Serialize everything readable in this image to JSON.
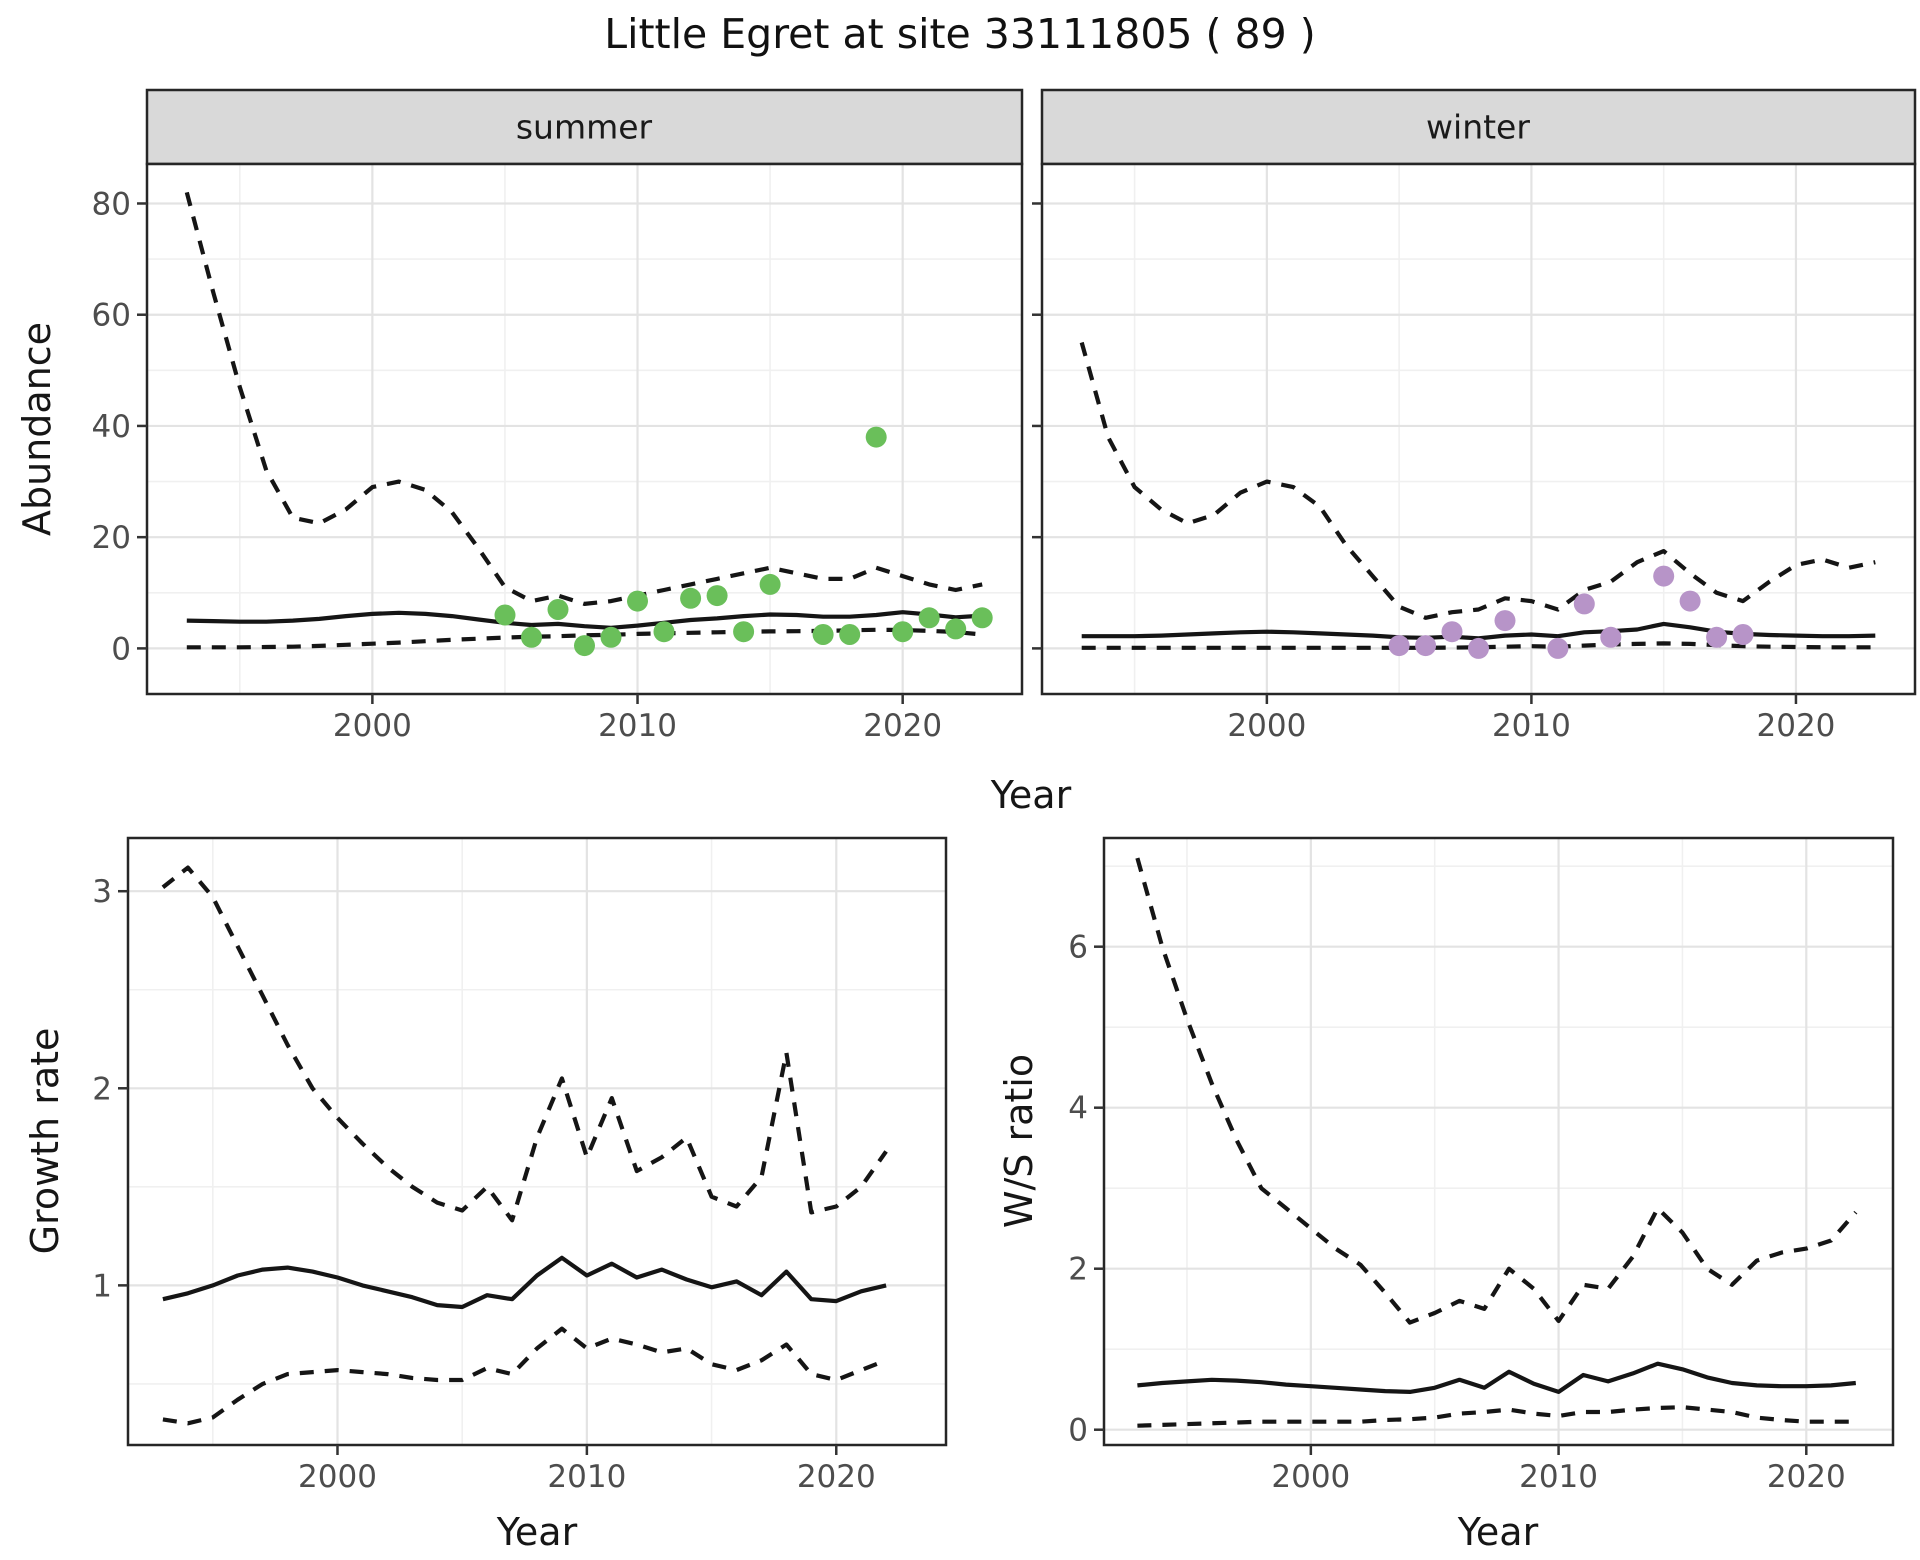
{
  "title": "Little Egret at site 33111805 ( 89 )",
  "facets": [
    {
      "label": "summer"
    },
    {
      "label": "winter"
    }
  ],
  "axes": {
    "abundance": "Abundance",
    "year": "Year",
    "growth": "Growth rate",
    "ws": "W/S ratio"
  },
  "colors": {
    "point_summer": "#6abf5a",
    "point_winter": "#b794c8",
    "line": "#151515",
    "grid_major": "#e3e3e3",
    "grid_minor": "#f0f0f0",
    "strip_bg": "#d9d9d9",
    "strip_border": "#262626",
    "panel_border": "#262626",
    "tick_mark": "#333333",
    "tick_label": "#4d4d4d"
  },
  "chart_data": [
    {
      "id": "abundance-summer",
      "type": "line",
      "facet": "summer",
      "ylabel": "Abundance",
      "xlabel": "Year",
      "x_ticks": [
        2000,
        2010,
        2020
      ],
      "x_minor": [
        1995,
        2005,
        2015
      ],
      "y_ticks": [
        0,
        20,
        40,
        60,
        80
      ],
      "y_minor": [
        10,
        30,
        50,
        70
      ],
      "xlim": [
        1991.5,
        2024.5
      ],
      "ylim": [
        -8.2,
        87.1
      ],
      "show_y_labels": true,
      "years": [
        1993,
        1994,
        1995,
        1996,
        1997,
        1998,
        1999,
        2000,
        2001,
        2002,
        2003,
        2004,
        2005,
        2006,
        2007,
        2008,
        2009,
        2010,
        2011,
        2012,
        2013,
        2014,
        2015,
        2016,
        2017,
        2018,
        2019,
        2020,
        2021,
        2022,
        2023
      ],
      "series": [
        {
          "name": "upper95",
          "style": "dashed",
          "values": [
            82,
            64,
            47,
            32,
            23.5,
            22.5,
            25,
            29,
            30,
            28.5,
            24.5,
            18,
            11,
            8.5,
            9.5,
            8,
            8.5,
            9.5,
            10.5,
            11.5,
            12.5,
            13.5,
            14.5,
            13.5,
            12.5,
            12.5,
            14.5,
            13,
            11.5,
            10.5,
            11.5
          ]
        },
        {
          "name": "mean",
          "style": "solid",
          "values": [
            5,
            4.9,
            4.8,
            4.8,
            5,
            5.3,
            5.8,
            6.2,
            6.4,
            6.2,
            5.8,
            5.2,
            4.6,
            4.2,
            4.4,
            4,
            3.7,
            4.1,
            4.6,
            5.1,
            5.4,
            5.8,
            6.1,
            6,
            5.7,
            5.7,
            6,
            6.5,
            6.1,
            5.6,
            5.9
          ]
        },
        {
          "name": "lower95",
          "style": "dashed",
          "values": [
            0.2,
            0.2,
            0.2,
            0.25,
            0.3,
            0.45,
            0.65,
            0.85,
            1.05,
            1.3,
            1.55,
            1.75,
            1.95,
            2.1,
            2.2,
            2.35,
            2.45,
            2.6,
            2.7,
            2.8,
            2.9,
            3,
            3.05,
            3.1,
            3.15,
            3.25,
            3.35,
            3.3,
            3.15,
            2.95,
            2.5
          ]
        }
      ],
      "points": {
        "color_key": "point_summer",
        "years": [
          2005,
          2006,
          2007,
          2008,
          2009,
          2010,
          2011,
          2012,
          2013,
          2014,
          2015,
          2017,
          2018,
          2019,
          2020,
          2021,
          2022,
          2023
        ],
        "values": [
          6,
          2,
          7,
          0.5,
          2,
          8.5,
          3,
          9,
          9.5,
          3,
          11.5,
          2.5,
          2.5,
          38,
          3,
          5.5,
          3.5,
          5.5
        ]
      }
    },
    {
      "id": "abundance-winter",
      "type": "line",
      "facet": "winter",
      "ylabel": "Abundance",
      "xlabel": "Year",
      "x_ticks": [
        2000,
        2010,
        2020
      ],
      "x_minor": [
        1995,
        2005,
        2015
      ],
      "y_ticks": [
        0,
        20,
        40,
        60,
        80
      ],
      "y_minor": [
        10,
        30,
        50,
        70
      ],
      "xlim": [
        1991.5,
        2024.5
      ],
      "ylim": [
        -8.2,
        87.1
      ],
      "show_y_labels": false,
      "years": [
        1993,
        1994,
        1995,
        1996,
        1997,
        1998,
        1999,
        2000,
        2001,
        2002,
        2003,
        2004,
        2005,
        2006,
        2007,
        2008,
        2009,
        2010,
        2011,
        2012,
        2013,
        2014,
        2015,
        2016,
        2017,
        2018,
        2019,
        2020,
        2021,
        2022,
        2023
      ],
      "series": [
        {
          "name": "upper95",
          "style": "dashed",
          "values": [
            55,
            38,
            29,
            25,
            22.5,
            24,
            28,
            30,
            29,
            25.5,
            18.5,
            13,
            7.5,
            5.5,
            6.5,
            7,
            9,
            8.5,
            7,
            10.5,
            12,
            15.5,
            17.5,
            13.5,
            10,
            8.5,
            12,
            15,
            16,
            14.5,
            15.5
          ]
        },
        {
          "name": "mean",
          "style": "solid",
          "values": [
            2.2,
            2.2,
            2.2,
            2.3,
            2.5,
            2.7,
            2.9,
            3,
            2.9,
            2.7,
            2.5,
            2.3,
            2,
            1.9,
            2.1,
            1.8,
            2.3,
            2.5,
            2.2,
            2.9,
            3.1,
            3.4,
            4.4,
            3.8,
            3,
            2.6,
            2.4,
            2.3,
            2.2,
            2.2,
            2.3
          ]
        },
        {
          "name": "lower95",
          "style": "dashed",
          "values": [
            0.1,
            0.1,
            0.1,
            0.1,
            0.1,
            0.1,
            0.1,
            0.1,
            0.1,
            0.1,
            0.1,
            0.1,
            0.1,
            0.1,
            0.15,
            0.2,
            0.3,
            0.4,
            0.3,
            0.5,
            0.7,
            0.8,
            0.9,
            0.8,
            0.6,
            0.4,
            0.3,
            0.25,
            0.2,
            0.2,
            0.2
          ]
        }
      ],
      "points": {
        "color_key": "point_winter",
        "years": [
          2005,
          2006,
          2007,
          2008,
          2009,
          2011,
          2012,
          2013,
          2015,
          2016,
          2017,
          2018
        ],
        "values": [
          0.5,
          0.5,
          3,
          0,
          5,
          0,
          8,
          2,
          13,
          8.5,
          2,
          2.5
        ]
      }
    },
    {
      "id": "growth-rate",
      "type": "line",
      "ylabel": "Growth rate",
      "xlabel": "Year",
      "x_ticks": [
        2000,
        2010,
        2020
      ],
      "x_minor": [
        1995,
        2005,
        2015
      ],
      "y_ticks": [
        1,
        2,
        3
      ],
      "y_minor": [
        0.5,
        1.5,
        2.5
      ],
      "xlim": [
        1991.6,
        2024.4
      ],
      "ylim": [
        0.19,
        3.27
      ],
      "show_y_labels": true,
      "years": [
        1993,
        1994,
        1995,
        1996,
        1997,
        1998,
        1999,
        2000,
        2001,
        2002,
        2003,
        2004,
        2005,
        2006,
        2007,
        2008,
        2009,
        2010,
        2011,
        2012,
        2013,
        2014,
        2015,
        2016,
        2017,
        2018,
        2019,
        2020,
        2021,
        2022
      ],
      "series": [
        {
          "name": "upper95",
          "style": "dashed",
          "values": [
            3.02,
            3.12,
            2.97,
            2.72,
            2.47,
            2.22,
            2,
            1.85,
            1.72,
            1.6,
            1.5,
            1.42,
            1.38,
            1.5,
            1.33,
            1.75,
            2.05,
            1.65,
            1.95,
            1.58,
            1.65,
            1.75,
            1.45,
            1.4,
            1.55,
            2.18,
            1.37,
            1.4,
            1.5,
            1.68
          ]
        },
        {
          "name": "mean",
          "style": "solid",
          "values": [
            0.93,
            0.96,
            1,
            1.05,
            1.08,
            1.09,
            1.07,
            1.04,
            1,
            0.97,
            0.94,
            0.9,
            0.89,
            0.95,
            0.93,
            1.05,
            1.14,
            1.05,
            1.11,
            1.04,
            1.08,
            1.03,
            0.99,
            1.02,
            0.95,
            1.07,
            0.93,
            0.92,
            0.97,
            1
          ]
        },
        {
          "name": "lower95",
          "style": "dashed",
          "values": [
            0.32,
            0.3,
            0.33,
            0.42,
            0.5,
            0.55,
            0.56,
            0.57,
            0.56,
            0.55,
            0.53,
            0.52,
            0.52,
            0.58,
            0.55,
            0.68,
            0.78,
            0.68,
            0.73,
            0.7,
            0.66,
            0.68,
            0.6,
            0.57,
            0.62,
            0.7,
            0.55,
            0.52,
            0.57,
            0.62
          ]
        }
      ]
    },
    {
      "id": "ws-ratio",
      "type": "line",
      "ylabel": "W/S ratio",
      "xlabel": "Year",
      "x_ticks": [
        2000,
        2010,
        2020
      ],
      "x_minor": [
        1995,
        2005,
        2015
      ],
      "y_ticks": [
        0,
        2,
        4,
        6
      ],
      "y_minor": [
        1,
        3,
        5,
        7
      ],
      "xlim": [
        1991.65,
        2023.5
      ],
      "ylim": [
        -0.19,
        7.35
      ],
      "show_y_labels": true,
      "years": [
        1993,
        1994,
        1995,
        1996,
        1997,
        1998,
        1999,
        2000,
        2001,
        2002,
        2003,
        2004,
        2005,
        2006,
        2007,
        2008,
        2009,
        2010,
        2011,
        2012,
        2013,
        2014,
        2015,
        2016,
        2017,
        2018,
        2019,
        2020,
        2021,
        2022
      ],
      "series": [
        {
          "name": "upper95",
          "style": "dashed",
          "values": [
            7.1,
            6,
            5.1,
            4.3,
            3.6,
            3,
            2.75,
            2.5,
            2.25,
            2.05,
            1.7,
            1.33,
            1.45,
            1.6,
            1.5,
            2,
            1.75,
            1.35,
            1.8,
            1.75,
            2.15,
            2.75,
            2.45,
            2,
            1.8,
            2.1,
            2.2,
            2.25,
            2.35,
            2.7
          ]
        },
        {
          "name": "mean",
          "style": "solid",
          "values": [
            0.55,
            0.58,
            0.6,
            0.62,
            0.61,
            0.59,
            0.56,
            0.54,
            0.52,
            0.5,
            0.48,
            0.47,
            0.52,
            0.62,
            0.52,
            0.72,
            0.57,
            0.47,
            0.68,
            0.6,
            0.7,
            0.82,
            0.75,
            0.65,
            0.58,
            0.55,
            0.54,
            0.54,
            0.55,
            0.58
          ]
        },
        {
          "name": "lower95",
          "style": "dashed",
          "values": [
            0.05,
            0.06,
            0.07,
            0.08,
            0.09,
            0.1,
            0.1,
            0.1,
            0.1,
            0.1,
            0.12,
            0.13,
            0.15,
            0.2,
            0.22,
            0.25,
            0.2,
            0.17,
            0.22,
            0.22,
            0.25,
            0.27,
            0.28,
            0.25,
            0.22,
            0.15,
            0.12,
            0.1,
            0.1,
            0.1
          ]
        }
      ]
    }
  ]
}
